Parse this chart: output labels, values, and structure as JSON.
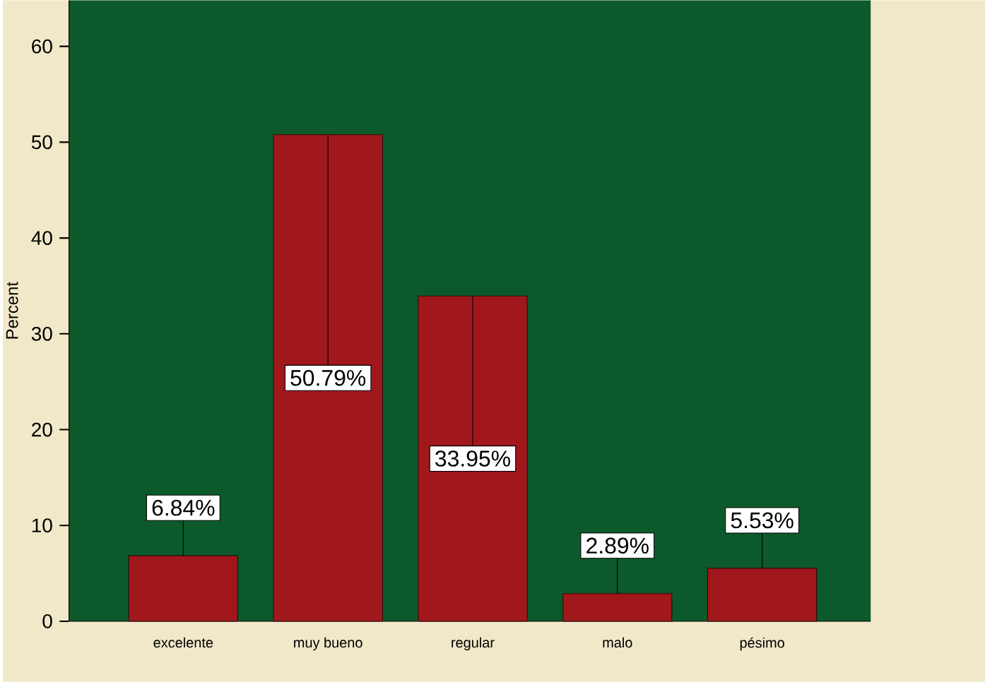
{
  "chart_data": {
    "type": "bar",
    "ylabel": "Percent",
    "categories": [
      "excelente",
      "muy bueno",
      "regular",
      "malo",
      "pésimo"
    ],
    "values": [
      6.84,
      50.79,
      33.95,
      2.89,
      5.53
    ],
    "value_labels": [
      "6.84%",
      "50.79%",
      "33.95%",
      "2.89%",
      "5.53%"
    ],
    "color": "#a0181c",
    "ylim": [
      0,
      64.8
    ],
    "yticks": [
      0,
      10,
      20,
      30,
      40,
      50,
      60
    ]
  }
}
